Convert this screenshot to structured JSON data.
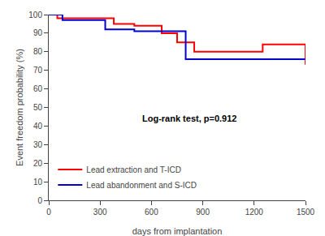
{
  "chart_data": {
    "type": "step",
    "xlabel": "days from implantation",
    "ylabel": "Event freedom probability (%)",
    "series": [
      {
        "name": "Lead extraction and T-ICD",
        "color": "#ff0000",
        "x": [
          0,
          50,
          300,
          380,
          500,
          660,
          750,
          850,
          1250,
          1500
        ],
        "values": [
          100,
          98,
          98,
          95,
          94,
          90,
          85,
          80,
          84,
          73
        ]
      },
      {
        "name": "Lead abandonment and S-ICD",
        "color": "#0000cc",
        "x": [
          0,
          80,
          330,
          500,
          660,
          800,
          870,
          1500
        ],
        "values": [
          100,
          97,
          92,
          91,
          91,
          76,
          76,
          76
        ]
      }
    ],
    "xlim": [
      0,
      1500
    ],
    "ylim": [
      0,
      100
    ],
    "xticks": [
      0,
      300,
      600,
      900,
      1200,
      1500
    ],
    "yticks": [
      0,
      10,
      20,
      30,
      40,
      50,
      60,
      70,
      80,
      90,
      100
    ],
    "annotations": [
      {
        "text": "Log-rank test, p=0.912",
        "x": 820,
        "y": 44
      }
    ],
    "legend": "lower left",
    "grid": false
  }
}
